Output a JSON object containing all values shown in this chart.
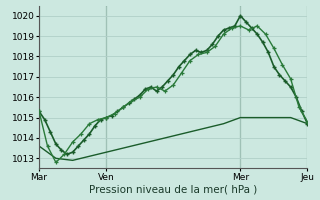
{
  "xlabel": "Pression niveau de la mer( hPa )",
  "background_color": "#cce8e0",
  "grid_color": "#b0cfc8",
  "line_color_dark": "#1a5c2a",
  "line_color_mid": "#2a7a3a",
  "xlim": [
    0,
    96
  ],
  "ylim": [
    1012.5,
    1020.5
  ],
  "yticks": [
    1013,
    1014,
    1015,
    1016,
    1017,
    1018,
    1019,
    1020
  ],
  "xtick_positions": [
    0,
    24,
    72,
    96
  ],
  "xtick_labels": [
    "Mar",
    "Ven",
    "Mer",
    "Jeu"
  ],
  "vlines": [
    0,
    24,
    72,
    96
  ],
  "series1_x": [
    0,
    2,
    4,
    6,
    8,
    10,
    12,
    14,
    16,
    18,
    20,
    22,
    24,
    26,
    28,
    30,
    32,
    34,
    36,
    38,
    40,
    42,
    44,
    46,
    48,
    50,
    52,
    54,
    56,
    58,
    60,
    62,
    64,
    66,
    68,
    70,
    72,
    74,
    76,
    78,
    80,
    82,
    84,
    86,
    88,
    90,
    92,
    94,
    96
  ],
  "series1_y": [
    1015.3,
    1014.9,
    1014.3,
    1013.7,
    1013.4,
    1013.2,
    1013.3,
    1013.6,
    1013.9,
    1014.2,
    1014.6,
    1014.9,
    1015.0,
    1015.1,
    1015.3,
    1015.5,
    1015.7,
    1015.9,
    1016.1,
    1016.4,
    1016.5,
    1016.3,
    1016.5,
    1016.8,
    1017.1,
    1017.5,
    1017.8,
    1018.1,
    1018.3,
    1018.2,
    1018.3,
    1018.6,
    1019.0,
    1019.3,
    1019.4,
    1019.5,
    1020.0,
    1019.7,
    1019.4,
    1019.1,
    1018.7,
    1018.2,
    1017.5,
    1017.1,
    1016.8,
    1016.5,
    1016.0,
    1015.3,
    1014.7
  ],
  "series2_x": [
    0,
    3,
    6,
    9,
    12,
    15,
    18,
    21,
    24,
    27,
    30,
    33,
    36,
    39,
    42,
    45,
    48,
    51,
    54,
    57,
    60,
    63,
    66,
    69,
    72,
    75,
    78,
    81,
    84,
    87,
    90,
    93,
    96
  ],
  "series2_y": [
    1015.3,
    1013.6,
    1012.8,
    1013.2,
    1013.8,
    1014.2,
    1014.7,
    1014.9,
    1015.0,
    1015.2,
    1015.5,
    1015.8,
    1016.0,
    1016.4,
    1016.5,
    1016.3,
    1016.6,
    1017.2,
    1017.8,
    1018.1,
    1018.2,
    1018.5,
    1019.1,
    1019.4,
    1019.5,
    1019.3,
    1019.5,
    1019.1,
    1018.4,
    1017.6,
    1016.9,
    1015.5,
    1014.8
  ],
  "series3_x": [
    0,
    6,
    12,
    18,
    24,
    30,
    36,
    42,
    48,
    54,
    60,
    66,
    72,
    78,
    84,
    90,
    96
  ],
  "series3_y": [
    1013.6,
    1013.0,
    1012.9,
    1013.1,
    1013.3,
    1013.5,
    1013.7,
    1013.9,
    1014.1,
    1014.3,
    1014.5,
    1014.7,
    1015.0,
    1015.0,
    1015.0,
    1015.0,
    1014.7
  ]
}
